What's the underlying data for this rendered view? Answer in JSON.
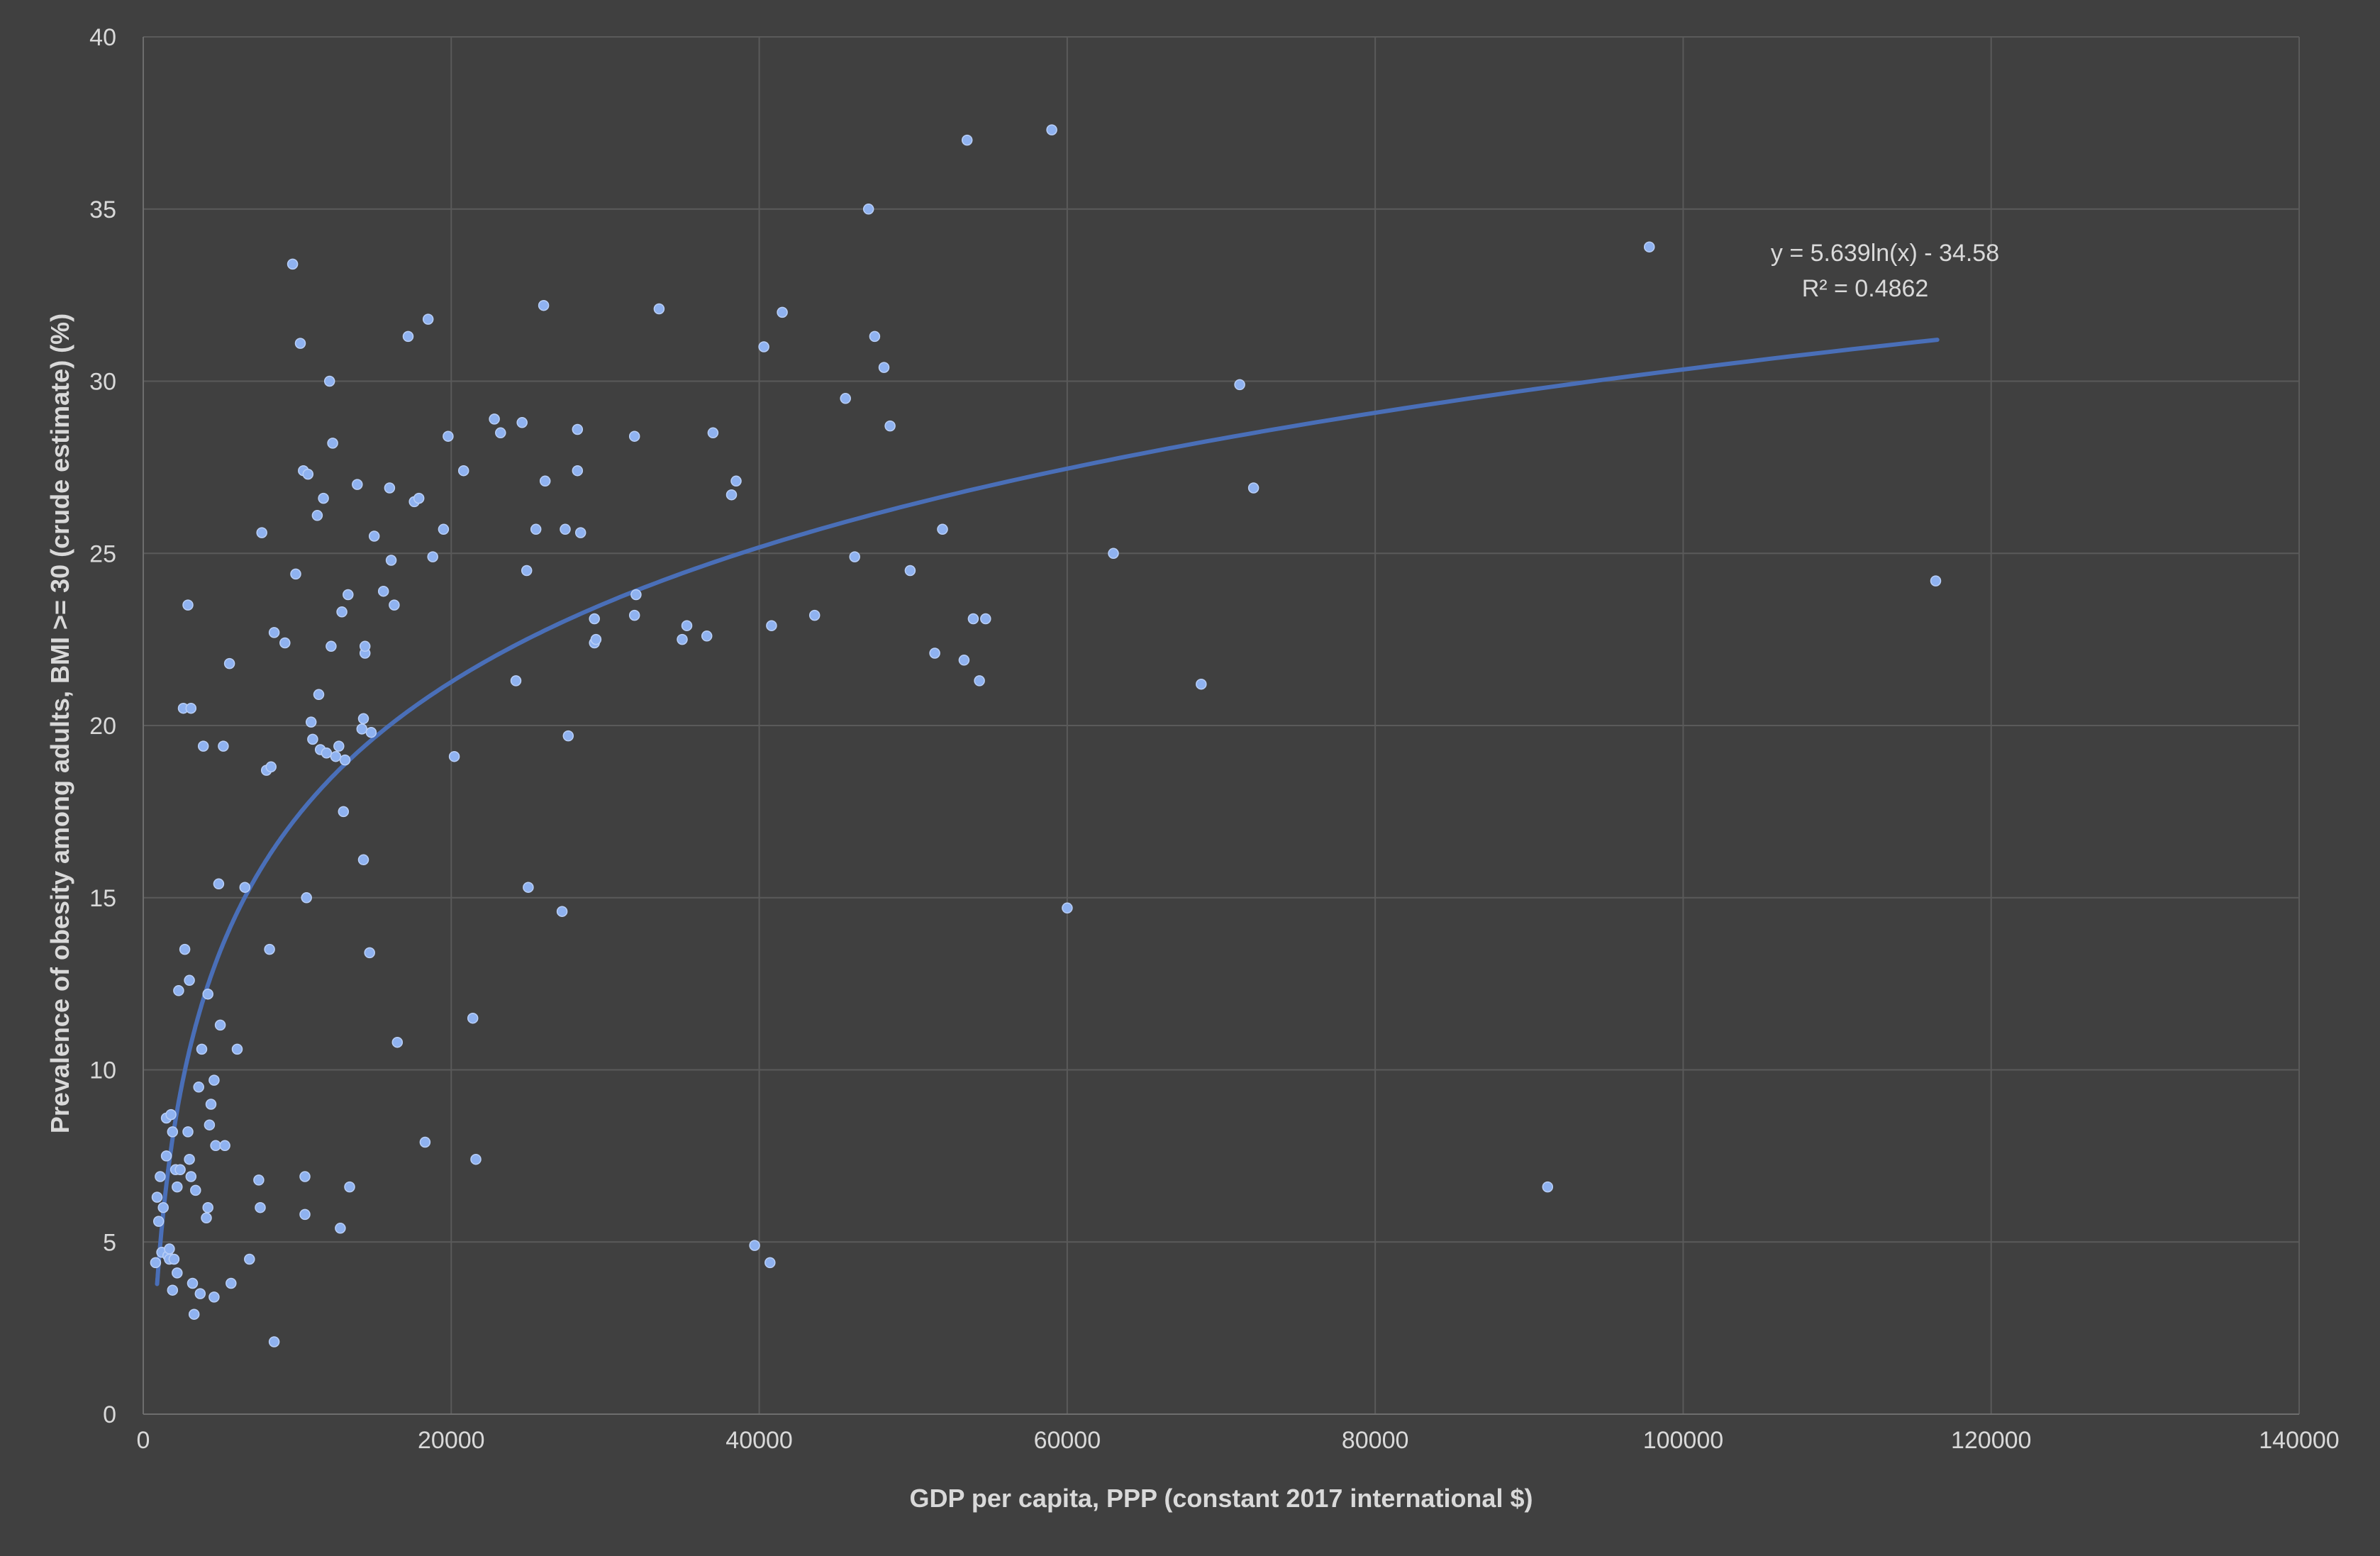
{
  "chart_data": {
    "type": "scatter",
    "title": "",
    "xlabel": "GDP per capita, PPP (constant 2017 international $)",
    "ylabel": "Prevalence of obesity among adults, BMI >= 30 (crude estimate) (%)",
    "xlim": [
      0,
      140000
    ],
    "ylim": [
      0,
      40
    ],
    "x_ticks": [
      "0",
      "20000",
      "40000",
      "60000",
      "80000",
      "100000",
      "120000",
      "140000"
    ],
    "y_ticks": [
      "0",
      "5",
      "10",
      "15",
      "20",
      "25",
      "30",
      "35",
      "40"
    ],
    "grid": true,
    "colors": {
      "background": "#404040",
      "points": "#8fb2f0",
      "trendline": "#4a6fb8",
      "text": "#d9d9d9",
      "grid": "#5a5a5a"
    },
    "trendline": {
      "type": "logarithmic",
      "a": 5.639,
      "b": -34.58,
      "x_range": [
        900,
        116500
      ],
      "equation_label": "y = 5.639ln(x) - 34.58",
      "r2_label": "R² = 0.4862"
    },
    "points": [
      [
        800,
        4.4
      ],
      [
        900,
        6.3
      ],
      [
        1000,
        5.6
      ],
      [
        1100,
        6.9
      ],
      [
        1200,
        4.7
      ],
      [
        1300,
        6.0
      ],
      [
        1500,
        7.5
      ],
      [
        1500,
        8.6
      ],
      [
        1600,
        4.6
      ],
      [
        1700,
        4.5
      ],
      [
        1700,
        4.8
      ],
      [
        1800,
        8.7
      ],
      [
        1900,
        3.6
      ],
      [
        1900,
        8.2
      ],
      [
        2000,
        4.5
      ],
      [
        2100,
        7.1
      ],
      [
        2200,
        4.1
      ],
      [
        2200,
        6.6
      ],
      [
        2300,
        12.3
      ],
      [
        2400,
        7.1
      ],
      [
        2600,
        20.5
      ],
      [
        2700,
        13.5
      ],
      [
        2900,
        8.2
      ],
      [
        2900,
        23.5
      ],
      [
        3000,
        12.6
      ],
      [
        3000,
        7.4
      ],
      [
        3100,
        20.5
      ],
      [
        3100,
        6.9
      ],
      [
        3200,
        3.8
      ],
      [
        3300,
        2.9
      ],
      [
        3400,
        6.5
      ],
      [
        3600,
        9.5
      ],
      [
        3700,
        3.5
      ],
      [
        3800,
        10.6
      ],
      [
        3900,
        19.4
      ],
      [
        4100,
        5.7
      ],
      [
        4200,
        6.0
      ],
      [
        4200,
        12.2
      ],
      [
        4300,
        8.4
      ],
      [
        4400,
        9.0
      ],
      [
        4600,
        9.7
      ],
      [
        4600,
        3.4
      ],
      [
        4700,
        7.8
      ],
      [
        4900,
        15.4
      ],
      [
        5000,
        11.3
      ],
      [
        5200,
        19.4
      ],
      [
        5300,
        7.8
      ],
      [
        5600,
        21.8
      ],
      [
        5700,
        3.8
      ],
      [
        6100,
        10.6
      ],
      [
        6600,
        15.3
      ],
      [
        6900,
        4.5
      ],
      [
        7500,
        6.8
      ],
      [
        7600,
        6.0
      ],
      [
        7700,
        25.6
      ],
      [
        8000,
        18.7
      ],
      [
        8200,
        13.5
      ],
      [
        8300,
        18.8
      ],
      [
        8500,
        2.1
      ],
      [
        8500,
        22.7
      ],
      [
        9200,
        22.4
      ],
      [
        9700,
        33.4
      ],
      [
        9900,
        24.4
      ],
      [
        10200,
        31.1
      ],
      [
        10400,
        27.4
      ],
      [
        10500,
        6.9
      ],
      [
        10500,
        5.8
      ],
      [
        10600,
        15.0
      ],
      [
        10700,
        27.3
      ],
      [
        10900,
        20.1
      ],
      [
        11000,
        19.6
      ],
      [
        11300,
        26.1
      ],
      [
        11400,
        20.9
      ],
      [
        11500,
        19.3
      ],
      [
        11700,
        26.6
      ],
      [
        11900,
        19.2
      ],
      [
        12100,
        30.0
      ],
      [
        12200,
        22.3
      ],
      [
        12300,
        28.2
      ],
      [
        12500,
        19.1
      ],
      [
        12700,
        19.4
      ],
      [
        12800,
        5.4
      ],
      [
        12900,
        23.3
      ],
      [
        13000,
        17.5
      ],
      [
        13100,
        19.0
      ],
      [
        13300,
        23.8
      ],
      [
        13400,
        6.6
      ],
      [
        13900,
        27.0
      ],
      [
        14200,
        19.9
      ],
      [
        14300,
        16.1
      ],
      [
        14300,
        20.2
      ],
      [
        14400,
        22.1
      ],
      [
        14400,
        22.3
      ],
      [
        14700,
        13.4
      ],
      [
        14800,
        19.8
      ],
      [
        15000,
        25.5
      ],
      [
        15600,
        23.9
      ],
      [
        16000,
        26.9
      ],
      [
        16100,
        24.8
      ],
      [
        16300,
        23.5
      ],
      [
        16500,
        10.8
      ],
      [
        17200,
        31.3
      ],
      [
        17600,
        26.5
      ],
      [
        17900,
        26.6
      ],
      [
        18300,
        7.9
      ],
      [
        18500,
        31.8
      ],
      [
        18800,
        24.9
      ],
      [
        19500,
        25.7
      ],
      [
        19800,
        28.4
      ],
      [
        20200,
        19.1
      ],
      [
        20800,
        27.4
      ],
      [
        21400,
        11.5
      ],
      [
        21600,
        7.4
      ],
      [
        22800,
        28.9
      ],
      [
        23200,
        28.5
      ],
      [
        24200,
        21.3
      ],
      [
        24600,
        28.8
      ],
      [
        24900,
        24.5
      ],
      [
        25000,
        15.3
      ],
      [
        25500,
        25.7
      ],
      [
        26000,
        32.2
      ],
      [
        26100,
        27.1
      ],
      [
        27200,
        14.6
      ],
      [
        27400,
        25.7
      ],
      [
        27600,
        19.7
      ],
      [
        28200,
        27.4
      ],
      [
        28200,
        28.6
      ],
      [
        28400,
        25.6
      ],
      [
        29300,
        22.4
      ],
      [
        29300,
        23.1
      ],
      [
        29400,
        22.5
      ],
      [
        31900,
        23.2
      ],
      [
        31900,
        28.4
      ],
      [
        32000,
        23.8
      ],
      [
        33500,
        32.1
      ],
      [
        35000,
        22.5
      ],
      [
        35300,
        22.9
      ],
      [
        36600,
        22.6
      ],
      [
        37000,
        28.5
      ],
      [
        38200,
        26.7
      ],
      [
        38500,
        27.1
      ],
      [
        39700,
        4.9
      ],
      [
        40300,
        31.0
      ],
      [
        40700,
        4.4
      ],
      [
        40800,
        22.9
      ],
      [
        41500,
        32.0
      ],
      [
        43600,
        23.2
      ],
      [
        45600,
        29.5
      ],
      [
        46200,
        24.9
      ],
      [
        47100,
        35.0
      ],
      [
        47500,
        31.3
      ],
      [
        48100,
        30.4
      ],
      [
        48500,
        28.7
      ],
      [
        49800,
        24.5
      ],
      [
        51400,
        22.1
      ],
      [
        51900,
        25.7
      ],
      [
        53300,
        21.9
      ],
      [
        53500,
        37.0
      ],
      [
        53900,
        23.1
      ],
      [
        54300,
        21.3
      ],
      [
        54700,
        23.1
      ],
      [
        59000,
        37.3
      ],
      [
        60000,
        14.7
      ],
      [
        63000,
        25.0
      ],
      [
        68700,
        21.2
      ],
      [
        71200,
        29.9
      ],
      [
        72100,
        26.9
      ],
      [
        91200,
        6.6
      ],
      [
        97800,
        33.9
      ],
      [
        116400,
        24.2
      ]
    ]
  }
}
